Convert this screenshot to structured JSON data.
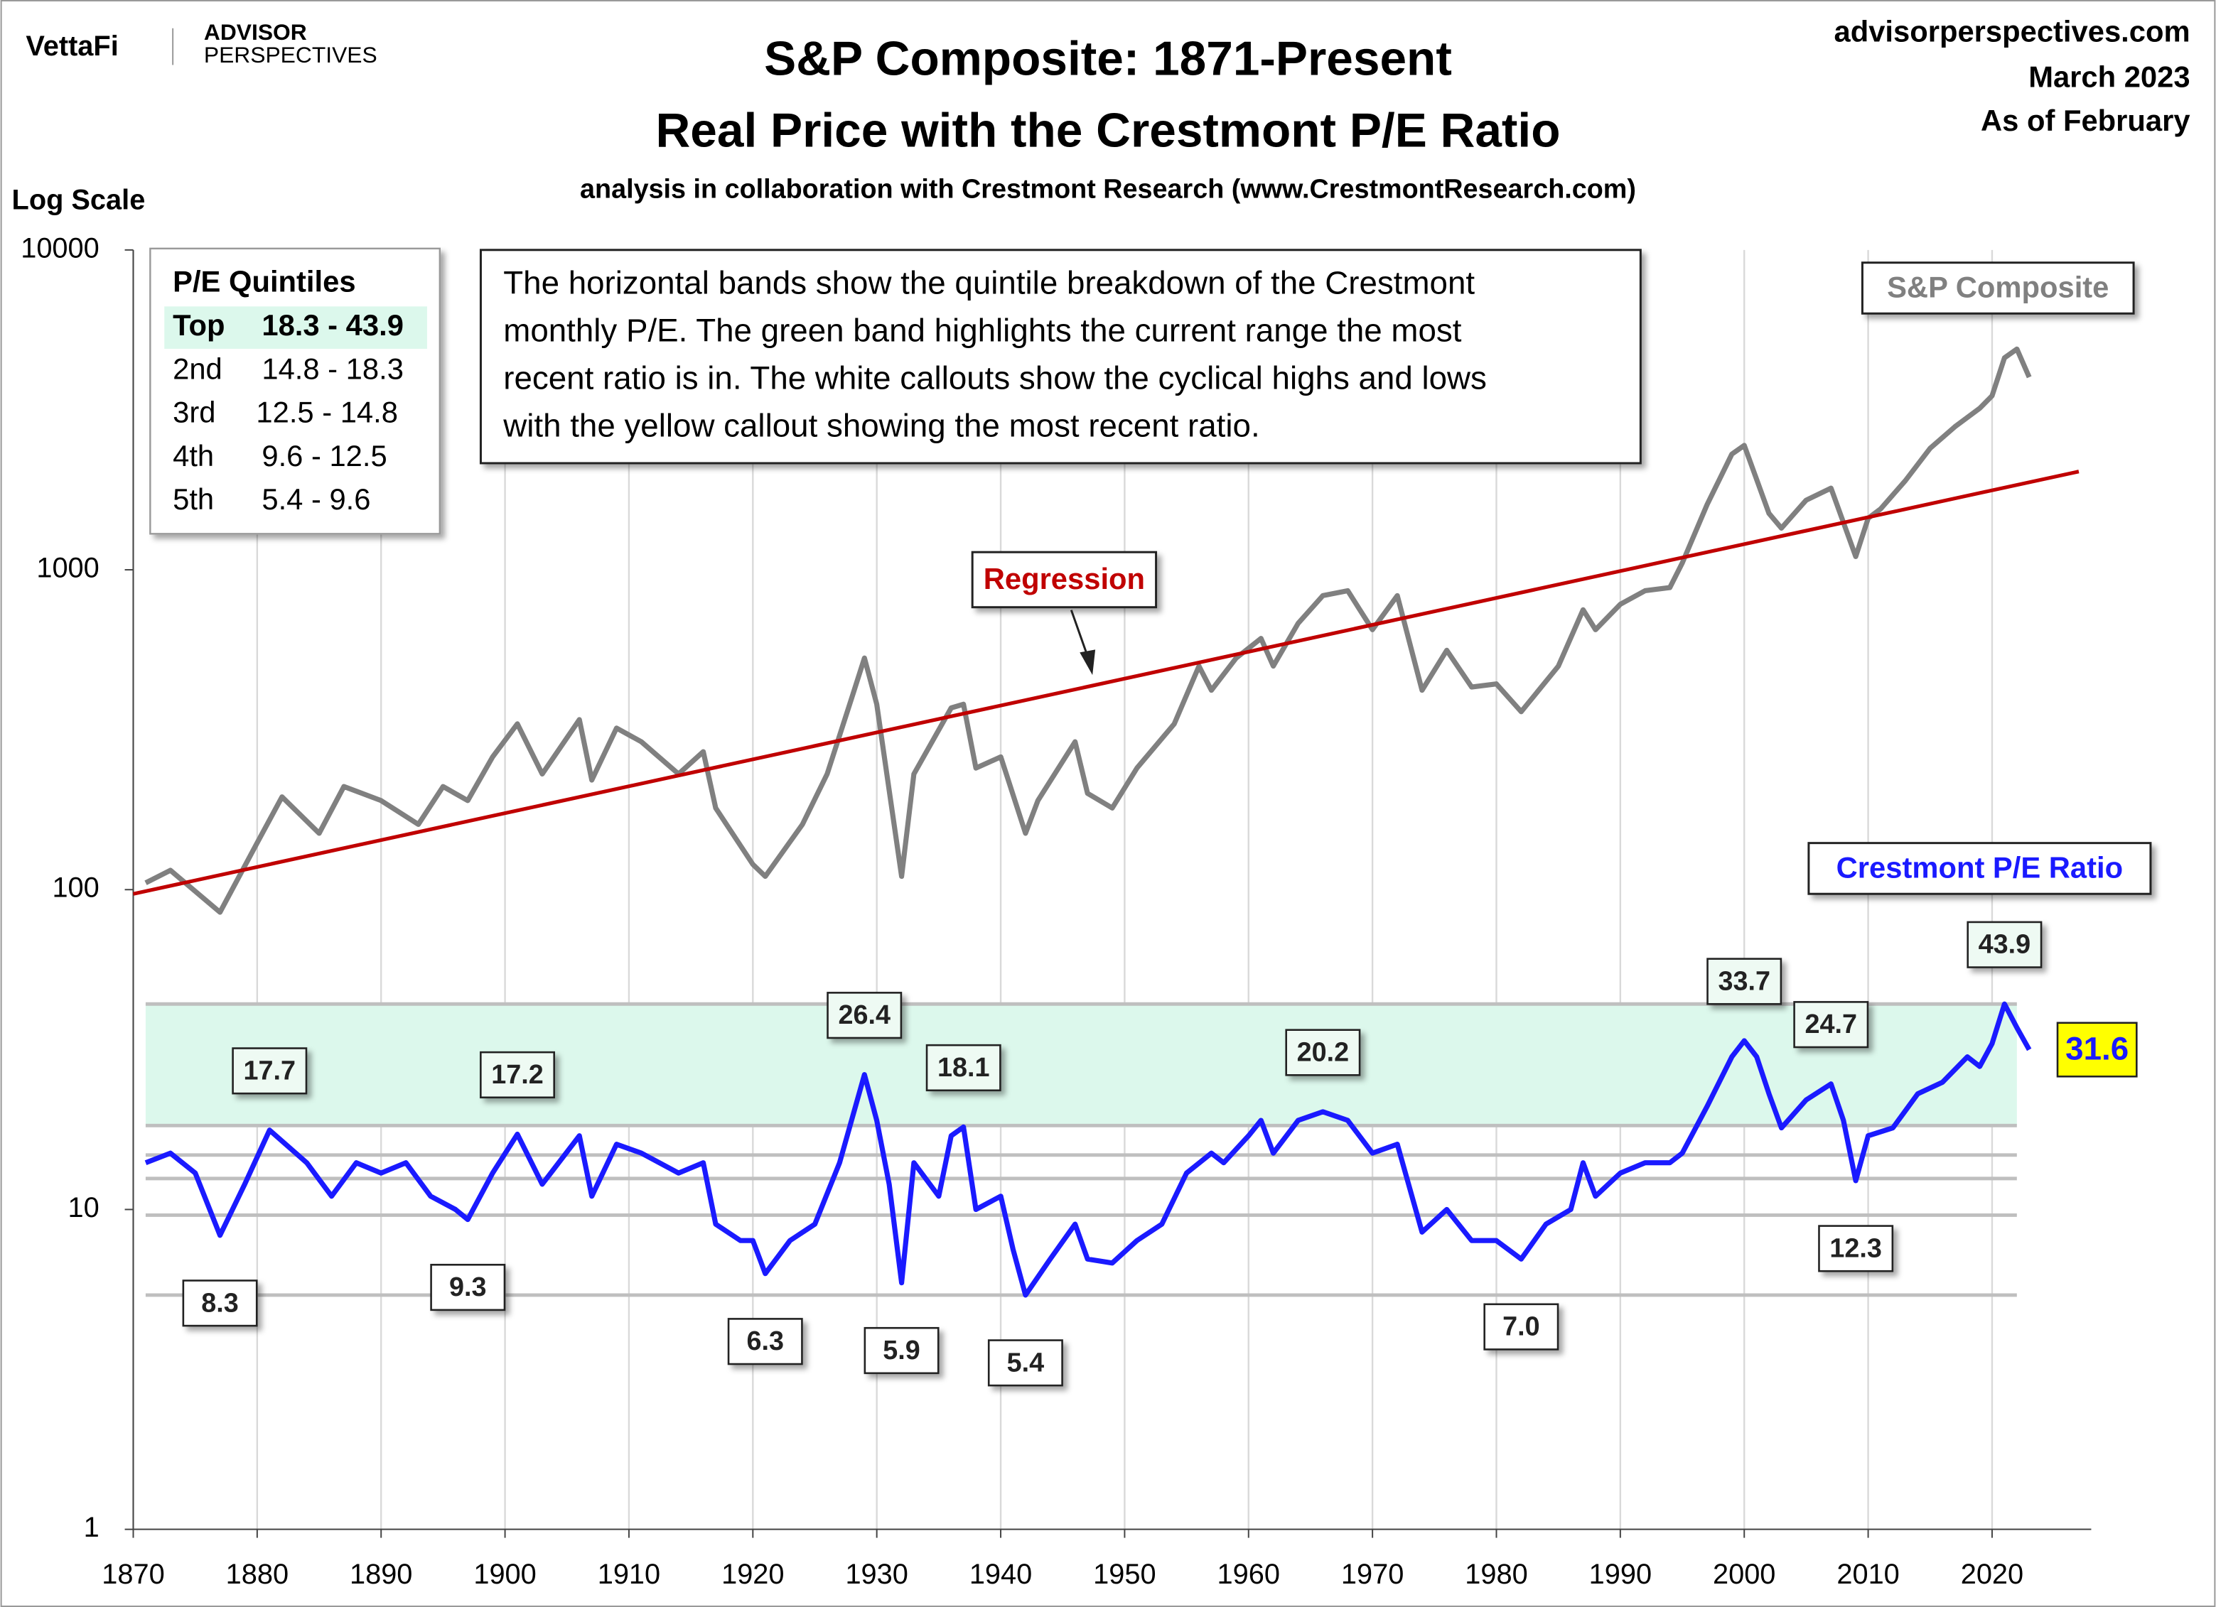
{
  "header": {
    "logo": "VettaFi",
    "brand_top": "ADVISOR",
    "brand_bottom": "PERSPECTIVES",
    "site": "advisorperspectives.com",
    "date": "March 2023",
    "as_of": "As of February"
  },
  "chart_data": {
    "type": "line",
    "title": [
      "S&P Composite: 1871-Present",
      "Real Price with the Crestmont P/E Ratio"
    ],
    "subtitle": "analysis in collaboration with Crestmont Research (www.CrestmontResearch.com)",
    "y_label": "Log Scale",
    "log_scale": true,
    "grid": "x",
    "xlim": [
      1870,
      2028
    ],
    "xticks": [
      1870,
      1880,
      1890,
      1900,
      1910,
      1920,
      1930,
      1940,
      1950,
      1960,
      1970,
      1980,
      1990,
      2000,
      2010,
      2020
    ],
    "ylim": [
      1,
      10000
    ],
    "yticks": [
      1,
      10,
      100,
      1000,
      10000
    ],
    "series": [
      {
        "name": "S&P Composite",
        "color": "#808080",
        "x": [
          1871,
          1873,
          1877,
          1880,
          1882,
          1885,
          1887,
          1890,
          1893,
          1895,
          1897,
          1899,
          1901,
          1903,
          1906,
          1907,
          1909,
          1911,
          1914,
          1916,
          1917,
          1920,
          1921,
          1924,
          1926,
          1928,
          1929,
          1930,
          1932,
          1933,
          1936,
          1937,
          1938,
          1940,
          1942,
          1943,
          1946,
          1947,
          1949,
          1951,
          1954,
          1956,
          1957,
          1959,
          1961,
          1962,
          1964,
          1966,
          1968,
          1970,
          1972,
          1974,
          1976,
          1978,
          1980,
          1982,
          1985,
          1987,
          1988,
          1990,
          1992,
          1994,
          1995,
          1997,
          1999,
          2000,
          2002,
          2003,
          2005,
          2007,
          2009,
          2010,
          2011,
          2013,
          2015,
          2017,
          2019,
          2020,
          2021,
          2022,
          2023
        ],
        "values": [
          105,
          115,
          85,
          140,
          195,
          150,
          210,
          190,
          160,
          210,
          190,
          260,
          330,
          230,
          340,
          220,
          320,
          290,
          230,
          270,
          180,
          120,
          110,
          160,
          230,
          400,
          530,
          380,
          110,
          230,
          370,
          380,
          240,
          260,
          150,
          190,
          290,
          200,
          180,
          240,
          330,
          500,
          420,
          530,
          610,
          500,
          680,
          830,
          860,
          650,
          830,
          420,
          560,
          430,
          440,
          360,
          500,
          750,
          650,
          780,
          860,
          880,
          1050,
          1600,
          2300,
          2450,
          1500,
          1350,
          1650,
          1800,
          1100,
          1450,
          1550,
          1900,
          2400,
          2800,
          3200,
          3500,
          4600,
          4900,
          4000
        ]
      },
      {
        "name": "Crestmont P/E Ratio",
        "color": "#1a1aff",
        "x": [
          1871,
          1873,
          1875,
          1877,
          1879,
          1881,
          1884,
          1886,
          1888,
          1890,
          1892,
          1894,
          1896,
          1897,
          1899,
          1901,
          1903,
          1906,
          1907,
          1909,
          1911,
          1914,
          1916,
          1917,
          1919,
          1920,
          1921,
          1923,
          1925,
          1927,
          1929,
          1930,
          1931,
          1932,
          1933,
          1935,
          1936,
          1937,
          1938,
          1940,
          1941,
          1942,
          1944,
          1946,
          1947,
          1949,
          1951,
          1953,
          1955,
          1957,
          1958,
          1960,
          1961,
          1962,
          1964,
          1966,
          1968,
          1970,
          1972,
          1974,
          1976,
          1978,
          1980,
          1982,
          1984,
          1986,
          1987,
          1988,
          1990,
          1992,
          1994,
          1995,
          1997,
          1999,
          2000,
          2001,
          2002,
          2003,
          2005,
          2007,
          2008,
          2009,
          2010,
          2012,
          2014,
          2016,
          2018,
          2019,
          2020,
          2021,
          2022,
          2023
        ],
        "values": [
          14,
          15,
          13,
          8.3,
          12,
          17.7,
          14,
          11,
          14,
          13,
          14,
          11,
          10,
          9.3,
          13,
          17.2,
          12,
          17,
          11,
          16,
          15,
          13,
          14,
          9,
          8,
          8,
          6.3,
          8,
          9,
          14,
          26.4,
          19,
          12,
          5.9,
          14,
          11,
          17,
          18.1,
          10,
          11,
          7.5,
          5.4,
          7,
          9,
          7,
          6.8,
          8,
          9,
          13,
          15,
          14,
          17,
          19,
          15,
          19,
          20.2,
          19,
          15,
          16,
          8.5,
          10,
          8,
          8,
          7.0,
          9,
          10,
          14,
          11,
          13,
          14,
          14,
          15,
          21,
          30,
          33.7,
          30,
          23,
          18,
          22,
          24.7,
          19,
          12.3,
          17,
          18,
          23,
          25,
          30,
          28,
          33,
          43.9,
          37,
          31.6
        ]
      },
      {
        "name": "Regression",
        "color": "#c00000",
        "x": [
          1870,
          2027
        ],
        "values": [
          97,
          2030
        ]
      }
    ],
    "quintile_bounds": [
      5.4,
      9.6,
      12.5,
      14.8,
      18.3,
      43.9
    ],
    "band_color": "#dcf8ec",
    "quintile_table": {
      "title": "P/E Quintiles",
      "rows": [
        [
          "Top",
          "18.3 - 43.9"
        ],
        [
          "2nd",
          "14.8 - 18.3"
        ],
        [
          "3rd",
          "12.5 - 14.8"
        ],
        [
          "4th",
          "9.6 - 12.5"
        ],
        [
          "5th",
          "5.4 - 9.6"
        ]
      ]
    },
    "note": [
      "The horizontal bands show the quintile breakdown of the Crestmont",
      "monthly P/E. The green band highlights the current range the most",
      "recent ratio is in. The white callouts show the cyclical highs and lows",
      "with the yellow callout showing the most recent ratio."
    ],
    "annotations": [
      {
        "x": 1877,
        "value": 8.3
      },
      {
        "x": 1881,
        "value": 17.7
      },
      {
        "x": 1897,
        "value": 9.3
      },
      {
        "x": 1901,
        "value": 17.2
      },
      {
        "x": 1921,
        "value": 6.3
      },
      {
        "x": 1929,
        "value": 26.4
      },
      {
        "x": 1932,
        "value": 5.9
      },
      {
        "x": 1937,
        "value": 18.1
      },
      {
        "x": 1942,
        "value": 5.4
      },
      {
        "x": 1966,
        "value": 20.2
      },
      {
        "x": 1982,
        "value": 7.0,
        "label": "7.0"
      },
      {
        "x": 2000,
        "value": 33.7
      },
      {
        "x": 2007,
        "value": 24.7
      },
      {
        "x": 2009,
        "value": 12.3
      },
      {
        "x": 2021,
        "value": 43.9
      }
    ],
    "latest": {
      "x": 2023,
      "value": 31.6,
      "color": "#ffff00"
    }
  }
}
